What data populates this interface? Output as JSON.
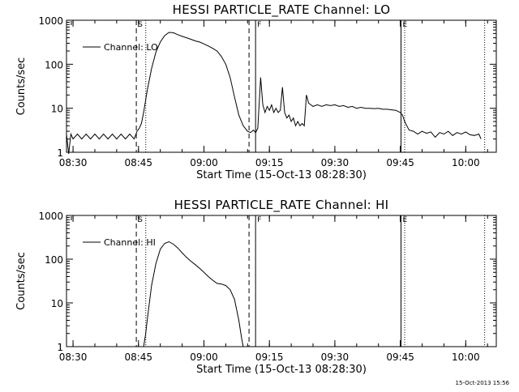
{
  "footer_timestamp": "15-Oct-2013 15:56",
  "chart_data": [
    {
      "type": "line",
      "title": "HESSI PARTICLE_RATE Channel: LO",
      "xlabel": "Start Time (15-Oct-13 08:28:30)",
      "ylabel": "Counts/sec",
      "yscale": "log",
      "ylim": [
        1,
        1000
      ],
      "xlim": [
        "08:28:30",
        "10:07:00"
      ],
      "grid": false,
      "legend_position": "top-left",
      "x_ticks": [
        "08:30",
        "08:45",
        "09:00",
        "09:15",
        "09:30",
        "09:45",
        "10:00"
      ],
      "y_ticks": [
        "1",
        "10",
        "100",
        "1000"
      ],
      "markers": [
        {
          "label": "S",
          "time": "08:44:30",
          "style": "dashed"
        },
        {
          "label": "",
          "time": "08:46:40",
          "style": "dotted"
        },
        {
          "label": "",
          "time": "09:10:20",
          "style": "dashed"
        },
        {
          "label": "F",
          "time": "09:11:50",
          "style": "solid"
        },
        {
          "label": "E",
          "time": "09:45:10",
          "style": "solid"
        },
        {
          "label": "",
          "time": "09:46:00",
          "style": "dotted"
        },
        {
          "label": "",
          "time": "10:04:20",
          "style": "dotted"
        }
      ],
      "series": [
        {
          "name": "Channel: LO",
          "points": [
            [
              "08:28:30",
              2.6
            ],
            [
              "08:29:00",
              0.8
            ],
            [
              "08:29:30",
              2.6
            ],
            [
              "08:30:00",
              2.0
            ],
            [
              "08:31:00",
              2.6
            ],
            [
              "08:32:00",
              2.0
            ],
            [
              "08:33:00",
              2.6
            ],
            [
              "08:34:00",
              2.0
            ],
            [
              "08:35:00",
              2.6
            ],
            [
              "08:36:00",
              2.0
            ],
            [
              "08:37:00",
              2.6
            ],
            [
              "08:38:00",
              2.0
            ],
            [
              "08:39:00",
              2.6
            ],
            [
              "08:40:00",
              2.0
            ],
            [
              "08:41:00",
              2.6
            ],
            [
              "08:42:00",
              2.0
            ],
            [
              "08:43:00",
              2.6
            ],
            [
              "08:44:00",
              2.0
            ],
            [
              "08:44:40",
              3.0
            ],
            [
              "08:45:10",
              3.5
            ],
            [
              "08:45:40",
              4.5
            ],
            [
              "08:46:10",
              8.0
            ],
            [
              "08:47:00",
              25
            ],
            [
              "08:48:00",
              80
            ],
            [
              "08:49:00",
              190
            ],
            [
              "08:50:00",
              320
            ],
            [
              "08:51:00",
              450
            ],
            [
              "08:52:00",
              530
            ],
            [
              "08:53:00",
              520
            ],
            [
              "08:54:00",
              470
            ],
            [
              "08:55:00",
              430
            ],
            [
              "08:56:00",
              400
            ],
            [
              "08:57:00",
              370
            ],
            [
              "08:58:00",
              340
            ],
            [
              "08:59:00",
              320
            ],
            [
              "09:00:00",
              290
            ],
            [
              "09:01:00",
              260
            ],
            [
              "09:02:00",
              230
            ],
            [
              "09:03:00",
              200
            ],
            [
              "09:04:00",
              150
            ],
            [
              "09:05:00",
              100
            ],
            [
              "09:06:00",
              50
            ],
            [
              "09:07:00",
              18
            ],
            [
              "09:08:00",
              7
            ],
            [
              "09:09:00",
              4
            ],
            [
              "09:10:00",
              3
            ],
            [
              "09:10:40",
              2.8
            ],
            [
              "09:11:20",
              3.2
            ],
            [
              "09:11:50",
              2.8
            ],
            [
              "09:12:20",
              3.5
            ],
            [
              "09:13:00",
              50
            ],
            [
              "09:13:30",
              12
            ],
            [
              "09:14:00",
              8
            ],
            [
              "09:14:30",
              11
            ],
            [
              "09:15:00",
              9
            ],
            [
              "09:15:30",
              12
            ],
            [
              "09:16:00",
              8
            ],
            [
              "09:16:30",
              10
            ],
            [
              "09:17:00",
              8
            ],
            [
              "09:17:30",
              9
            ],
            [
              "09:18:00",
              30
            ],
            [
              "09:18:30",
              8
            ],
            [
              "09:19:00",
              6
            ],
            [
              "09:19:30",
              7
            ],
            [
              "09:20:00",
              5
            ],
            [
              "09:20:30",
              6
            ],
            [
              "09:21:00",
              4
            ],
            [
              "09:21:30",
              5
            ],
            [
              "09:22:00",
              4
            ],
            [
              "09:22:30",
              4.5
            ],
            [
              "09:23:00",
              4
            ],
            [
              "09:23:30",
              20
            ],
            [
              "09:24:00",
              13
            ],
            [
              "09:24:30",
              12
            ],
            [
              "09:25:00",
              11
            ],
            [
              "09:26:00",
              12
            ],
            [
              "09:27:00",
              11
            ],
            [
              "09:28:00",
              12
            ],
            [
              "09:29:00",
              11.5
            ],
            [
              "09:30:00",
              12
            ],
            [
              "09:31:00",
              11
            ],
            [
              "09:32:00",
              11.5
            ],
            [
              "09:33:00",
              10.5
            ],
            [
              "09:34:00",
              11
            ],
            [
              "09:35:00",
              10
            ],
            [
              "09:36:00",
              10.5
            ],
            [
              "09:37:00",
              10
            ],
            [
              "09:38:00",
              10
            ],
            [
              "09:39:00",
              9.8
            ],
            [
              "09:40:00",
              10
            ],
            [
              "09:41:00",
              9.5
            ],
            [
              "09:42:00",
              9.5
            ],
            [
              "09:43:00",
              9.2
            ],
            [
              "09:44:00",
              9
            ],
            [
              "09:45:00",
              8
            ],
            [
              "09:45:30",
              7
            ],
            [
              "09:46:00",
              5
            ],
            [
              "09:46:30",
              4
            ],
            [
              "09:47:00",
              3.2
            ],
            [
              "09:48:00",
              3
            ],
            [
              "09:49:00",
              2.6
            ],
            [
              "09:50:00",
              3
            ],
            [
              "09:51:00",
              2.7
            ],
            [
              "09:52:00",
              2.9
            ],
            [
              "09:53:00",
              2.2
            ],
            [
              "09:54:00",
              2.8
            ],
            [
              "09:55:00",
              2.6
            ],
            [
              "09:56:00",
              3
            ],
            [
              "09:57:00",
              2.4
            ],
            [
              "09:58:00",
              2.8
            ],
            [
              "09:59:00",
              2.6
            ],
            [
              "10:00:00",
              2.9
            ],
            [
              "10:01:00",
              2.5
            ],
            [
              "10:02:00",
              2.4
            ],
            [
              "10:03:00",
              2.6
            ],
            [
              "10:03:30",
              2.0
            ]
          ]
        }
      ]
    },
    {
      "type": "line",
      "title": "HESSI PARTICLE_RATE Channel: HI",
      "xlabel": "Start Time (15-Oct-13 08:28:30)",
      "ylabel": "Counts/sec",
      "yscale": "log",
      "ylim": [
        1,
        1000
      ],
      "xlim": [
        "08:28:30",
        "10:07:00"
      ],
      "grid": false,
      "legend_position": "top-left",
      "x_ticks": [
        "08:30",
        "08:45",
        "09:00",
        "09:15",
        "09:30",
        "09:45",
        "10:00"
      ],
      "y_ticks": [
        "1",
        "10",
        "100",
        "1000"
      ],
      "markers": [
        {
          "label": "S",
          "time": "08:44:30",
          "style": "dashed"
        },
        {
          "label": "",
          "time": "08:46:40",
          "style": "dotted"
        },
        {
          "label": "",
          "time": "09:10:20",
          "style": "dashed"
        },
        {
          "label": "F",
          "time": "09:11:50",
          "style": "solid"
        },
        {
          "label": "E",
          "time": "09:45:10",
          "style": "solid"
        },
        {
          "label": "",
          "time": "09:46:00",
          "style": "dotted"
        },
        {
          "label": "",
          "time": "10:04:20",
          "style": "dotted"
        }
      ],
      "series": [
        {
          "name": "Channel: HI",
          "points": [
            [
              "08:46:10",
              1.0
            ],
            [
              "08:46:40",
              2.0
            ],
            [
              "08:47:00",
              4.0
            ],
            [
              "08:47:30",
              10
            ],
            [
              "08:48:00",
              25
            ],
            [
              "08:49:00",
              80
            ],
            [
              "08:50:00",
              170
            ],
            [
              "08:51:00",
              230
            ],
            [
              "08:52:00",
              250
            ],
            [
              "08:53:00",
              220
            ],
            [
              "08:54:00",
              180
            ],
            [
              "08:55:00",
              140
            ],
            [
              "08:56:00",
              110
            ],
            [
              "08:57:00",
              90
            ],
            [
              "08:58:00",
              75
            ],
            [
              "08:59:00",
              62
            ],
            [
              "09:00:00",
              50
            ],
            [
              "09:01:00",
              40
            ],
            [
              "09:02:00",
              33
            ],
            [
              "09:03:00",
              28
            ],
            [
              "09:04:00",
              27
            ],
            [
              "09:05:00",
              25
            ],
            [
              "09:06:00",
              20
            ],
            [
              "09:07:00",
              12
            ],
            [
              "09:08:00",
              4
            ],
            [
              "09:08:40",
              1.5
            ],
            [
              "09:09:00",
              1.0
            ]
          ]
        }
      ]
    }
  ]
}
